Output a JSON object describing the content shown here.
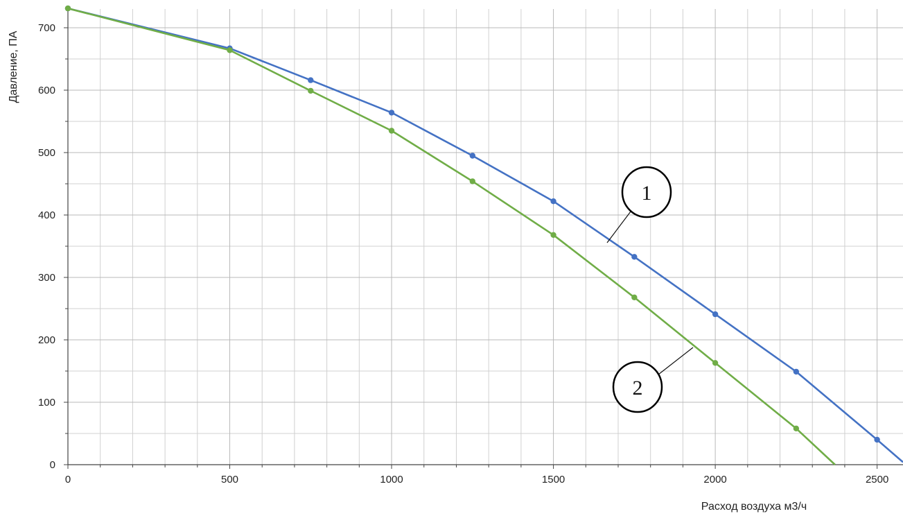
{
  "chart_data": {
    "type": "line",
    "title": "",
    "xlabel": "Расход воздуха м3/ч",
    "ylabel": "Давление, ПА",
    "xlim": [
      0,
      2580
    ],
    "ylim": [
      0,
      730
    ],
    "x_ticks": [
      "0",
      "500",
      "1000",
      "1500",
      "2000",
      "2500"
    ],
    "y_ticks": [
      "0",
      "100",
      "200",
      "300",
      "400",
      "500",
      "600",
      "700"
    ],
    "grid": true,
    "series": [
      {
        "name": "1",
        "color": "#4472c4",
        "x": [
          0,
          500,
          750,
          1000,
          1250,
          1500,
          1750,
          2000,
          2250,
          2500
        ],
        "y": [
          731,
          667,
          616,
          564,
          495,
          422,
          333,
          241,
          149,
          40
        ],
        "line_end": [
          2580,
          4
        ]
      },
      {
        "name": "2",
        "color": "#70ad47",
        "x": [
          0,
          500,
          750,
          1000,
          1250,
          1500,
          1750,
          2000,
          2250
        ],
        "y": [
          731,
          664,
          599,
          535,
          454,
          368,
          268,
          163,
          58
        ],
        "line_end": [
          2370,
          0
        ]
      }
    ]
  }
}
